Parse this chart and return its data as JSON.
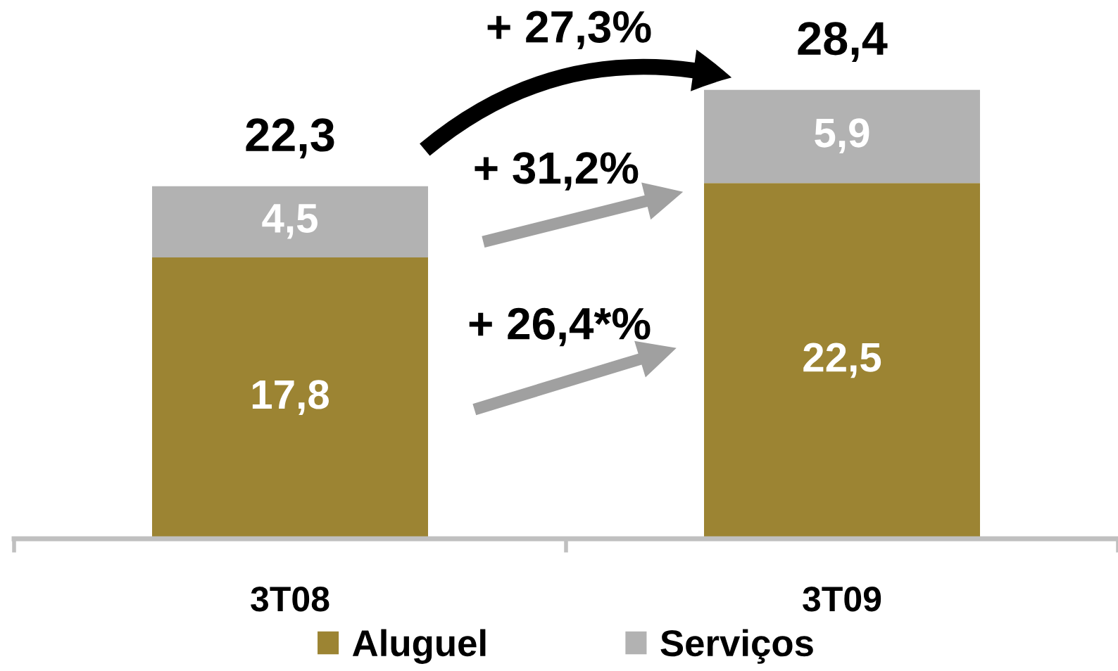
{
  "chart_data": {
    "type": "bar",
    "stacked": true,
    "categories": [
      "3T08",
      "3T09"
    ],
    "series": [
      {
        "name": "Aluguel",
        "color": "#9c8433",
        "values": [
          17.8,
          22.5
        ],
        "value_labels": [
          "17,8",
          "22,5"
        ]
      },
      {
        "name": "Serviços",
        "color": "#b2b2b2",
        "values": [
          4.5,
          5.9
        ],
        "value_labels": [
          "4,5",
          "5,9"
        ]
      }
    ],
    "totals": [
      "22,3",
      "28,4"
    ],
    "tick_labels": "x",
    "legend": "bottom",
    "annotations": [
      "+ 27,3%",
      "+ 31,2%",
      "+ 26,4*%"
    ]
  }
}
